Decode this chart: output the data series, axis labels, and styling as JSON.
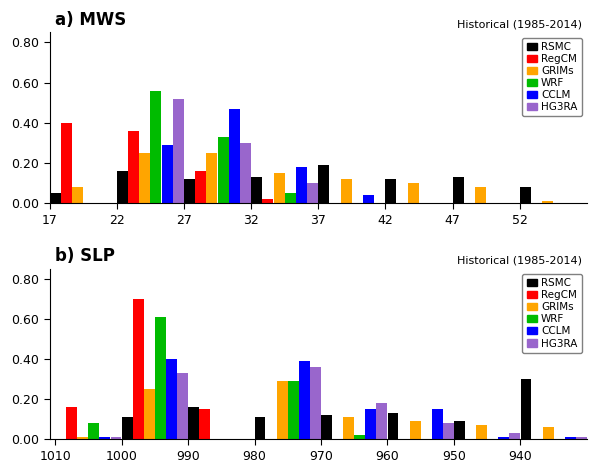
{
  "mws": {
    "title": "a) MWS",
    "subtitle": "Historical (1985-2014)",
    "ylim": [
      0,
      0.85
    ],
    "yticks": [
      0.0,
      0.2,
      0.4,
      0.6,
      0.8
    ],
    "xticks": [
      17,
      22,
      27,
      32,
      37,
      42,
      47,
      52
    ],
    "bin_edges": [
      17,
      22,
      27,
      32,
      37,
      42,
      47,
      52
    ],
    "bin_width": 5,
    "series": {
      "RSMC": [
        0.05,
        0.16,
        0.12,
        0.13,
        0.19,
        0.12,
        0.13,
        0.08
      ],
      "RegCM": [
        0.4,
        0.36,
        0.16,
        0.02,
        0.0,
        0.0,
        0.0,
        0.0
      ],
      "GRIMs": [
        0.08,
        0.25,
        0.25,
        0.15,
        0.12,
        0.1,
        0.08,
        0.01
      ],
      "WRF": [
        0.0,
        0.56,
        0.33,
        0.05,
        0.0,
        0.0,
        0.0,
        0.0
      ],
      "CCLM": [
        0.0,
        0.29,
        0.47,
        0.18,
        0.04,
        0.0,
        0.0,
        0.0
      ],
      "HG3RA": [
        0.0,
        0.52,
        0.3,
        0.1,
        0.0,
        0.0,
        0.0,
        0.0
      ]
    }
  },
  "slp": {
    "title": "b) SLP",
    "subtitle": "Historical (1985-2014)",
    "ylim": [
      0,
      0.85
    ],
    "yticks": [
      0.0,
      0.2,
      0.4,
      0.6,
      0.8
    ],
    "xticks": [
      1010,
      1000,
      990,
      980,
      970,
      960,
      950,
      940
    ],
    "bin_edges": [
      1010,
      1000,
      990,
      980,
      970,
      960,
      950,
      940
    ],
    "bin_width": 10,
    "series": {
      "RSMC": [
        0.0,
        0.11,
        0.16,
        0.11,
        0.12,
        0.13,
        0.09,
        0.3
      ],
      "RegCM": [
        0.16,
        0.7,
        0.15,
        0.0,
        0.0,
        0.0,
        0.0,
        0.0
      ],
      "GRIMs": [
        0.01,
        0.25,
        0.0,
        0.29,
        0.11,
        0.09,
        0.07,
        0.06
      ],
      "WRF": [
        0.08,
        0.61,
        0.0,
        0.29,
        0.02,
        0.0,
        0.0,
        0.0
      ],
      "CCLM": [
        0.01,
        0.4,
        0.0,
        0.39,
        0.15,
        0.15,
        0.01,
        0.01
      ],
      "HG3RA": [
        0.01,
        0.33,
        0.0,
        0.36,
        0.18,
        0.08,
        0.03,
        0.01
      ]
    }
  },
  "series_order": [
    "RSMC",
    "RegCM",
    "GRIMs",
    "WRF",
    "CCLM",
    "HG3RA"
  ],
  "colors": {
    "RSMC": "#000000",
    "RegCM": "#ff0000",
    "GRIMs": "#ffa500",
    "WRF": "#00bb00",
    "CCLM": "#0000ff",
    "HG3RA": "#9966cc"
  },
  "legend_labels_slp": [
    "RSMC",
    "RegCM",
    "GRIMs",
    "WRF",
    "CCLM",
    "HG3RA"
  ],
  "legend_labels_mws": [
    "RSMC",
    "RegCM",
    "GRIMs",
    "WRF",
    "CCLM",
    "HG3RA"
  ]
}
